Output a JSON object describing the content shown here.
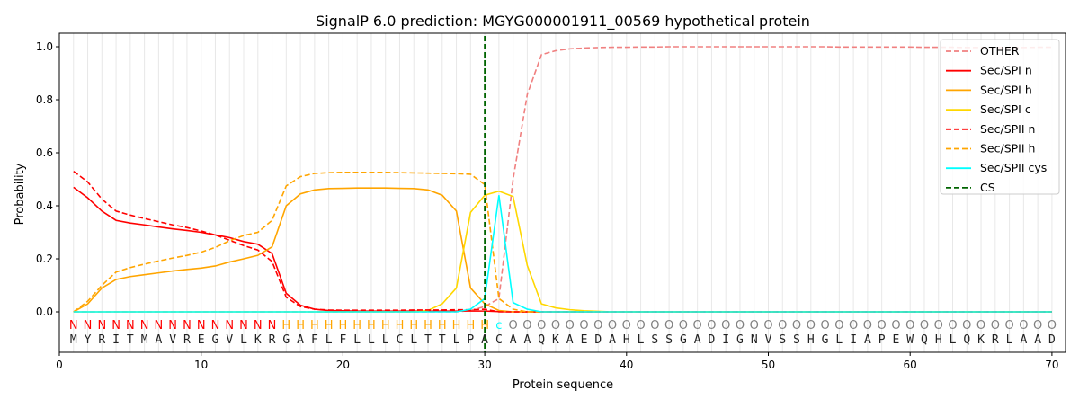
{
  "chart_data": {
    "type": "line",
    "title": "SignalP 6.0 prediction: MGYG000001911_00569 hypothetical protein",
    "xlabel": "Protein sequence",
    "ylabel": "Probability",
    "xlim": [
      0,
      71
    ],
    "ylim": [
      -0.15,
      1.05
    ],
    "xticks": [
      "0",
      "10",
      "20",
      "30",
      "40",
      "50",
      "60",
      "70"
    ],
    "yticks": [
      "0.0",
      "0.2",
      "0.4",
      "0.6",
      "0.8",
      "1.0"
    ],
    "legend_position": "top-right",
    "sequence": "MYRITMAVREGVLKRGAFLFLLLCLTTLPACAAQKAEDAHLSSGADIGNVSSHGLIAPEWQHLQKRLAAD",
    "labels": "NNNNNNNNNNNNNNNHHHHHHHHHHHHHHHcOOOOOOOOOOOOOOOOOOOOOOOOOOOOOOOOOOOOOOO",
    "label_colors": {
      "N": "#ff0000",
      "H": "#ffa500",
      "c": "#00ffff",
      "O": "#808080"
    },
    "cs_position": 30,
    "series": [
      {
        "name": "OTHER",
        "color": "#f08080",
        "dash": true,
        "values": [
          0,
          0,
          0,
          0,
          0,
          0,
          0,
          0,
          0,
          0,
          0,
          0,
          0,
          0,
          0,
          0,
          0,
          0,
          0,
          0,
          0,
          0,
          0,
          0,
          0,
          0,
          0,
          0,
          0.005,
          0.02,
          0.05,
          0.5,
          0.82,
          0.97,
          0.985,
          0.992,
          0.995,
          0.997,
          0.998,
          0.998,
          0.999,
          0.999,
          1,
          1,
          1,
          1,
          1,
          1,
          1,
          1,
          1,
          1,
          1,
          1,
          0.999,
          0.999,
          0.999,
          0.999,
          0.999,
          0.999,
          0.998,
          0.998,
          0.998,
          0.997,
          0.997,
          0.997,
          0.997,
          0.997,
          0.998,
          0.998
        ]
      },
      {
        "name": "Sec/SPI n",
        "color": "#ff0000",
        "dash": false,
        "values": [
          0.47,
          0.43,
          0.38,
          0.345,
          0.335,
          0.328,
          0.32,
          0.313,
          0.307,
          0.3,
          0.29,
          0.28,
          0.265,
          0.255,
          0.22,
          0.07,
          0.025,
          0.01,
          0.005,
          0.004,
          0.003,
          0.003,
          0.003,
          0.003,
          0.003,
          0.003,
          0.003,
          0.003,
          0.003,
          0.003,
          0.001,
          0,
          0,
          0,
          0,
          0,
          0,
          0,
          0,
          0,
          0,
          0,
          0,
          0,
          0,
          0,
          0,
          0,
          0,
          0,
          0,
          0,
          0,
          0,
          0,
          0,
          0,
          0,
          0,
          0,
          0,
          0,
          0,
          0,
          0,
          0,
          0,
          0,
          0,
          0
        ]
      },
      {
        "name": "Sec/SPI h",
        "color": "#ffa500",
        "dash": false,
        "values": [
          0,
          0.03,
          0.09,
          0.122,
          0.133,
          0.14,
          0.147,
          0.154,
          0.16,
          0.165,
          0.173,
          0.188,
          0.2,
          0.213,
          0.245,
          0.4,
          0.445,
          0.46,
          0.465,
          0.466,
          0.467,
          0.467,
          0.467,
          0.466,
          0.465,
          0.46,
          0.44,
          0.38,
          0.09,
          0.03,
          0.005,
          0,
          0,
          0,
          0,
          0,
          0,
          0,
          0,
          0,
          0,
          0,
          0,
          0,
          0,
          0,
          0,
          0,
          0,
          0,
          0,
          0,
          0,
          0,
          0,
          0,
          0,
          0,
          0,
          0,
          0,
          0,
          0,
          0,
          0,
          0,
          0,
          0,
          0,
          0
        ]
      },
      {
        "name": "Sec/SPI c",
        "color": "#ffd700",
        "dash": false,
        "values": [
          0,
          0,
          0,
          0,
          0,
          0,
          0,
          0,
          0,
          0,
          0,
          0,
          0,
          0,
          0,
          0,
          0,
          0,
          0,
          0,
          0,
          0,
          0,
          0,
          0,
          0.005,
          0.03,
          0.09,
          0.375,
          0.44,
          0.455,
          0.435,
          0.175,
          0.03,
          0.015,
          0.008,
          0.004,
          0.002,
          0,
          0,
          0,
          0,
          0,
          0,
          0,
          0,
          0,
          0,
          0,
          0,
          0,
          0,
          0,
          0,
          0,
          0,
          0,
          0,
          0,
          0,
          0,
          0,
          0,
          0,
          0,
          0,
          0,
          0,
          0,
          0
        ]
      },
      {
        "name": "Sec/SPII n",
        "color": "#ff0000",
        "dash": true,
        "values": [
          0.53,
          0.49,
          0.425,
          0.38,
          0.365,
          0.352,
          0.34,
          0.328,
          0.318,
          0.305,
          0.29,
          0.27,
          0.25,
          0.233,
          0.19,
          0.055,
          0.02,
          0.01,
          0.007,
          0.006,
          0.006,
          0.006,
          0.006,
          0.006,
          0.007,
          0.007,
          0.007,
          0.008,
          0.008,
          0.01,
          0,
          0,
          0,
          0,
          0,
          0,
          0,
          0,
          0,
          0,
          0,
          0,
          0,
          0,
          0,
          0,
          0,
          0,
          0,
          0,
          0,
          0,
          0,
          0,
          0,
          0,
          0,
          0,
          0,
          0,
          0,
          0,
          0,
          0,
          0,
          0,
          0,
          0,
          0,
          0
        ]
      },
      {
        "name": "Sec/SPII h",
        "color": "#ffa500",
        "dash": true,
        "values": [
          0,
          0.04,
          0.1,
          0.15,
          0.167,
          0.18,
          0.192,
          0.203,
          0.213,
          0.225,
          0.243,
          0.268,
          0.288,
          0.3,
          0.345,
          0.475,
          0.51,
          0.522,
          0.525,
          0.526,
          0.526,
          0.526,
          0.526,
          0.525,
          0.524,
          0.523,
          0.522,
          0.521,
          0.519,
          0.48,
          0.05,
          0.01,
          0,
          0,
          0,
          0,
          0,
          0,
          0,
          0,
          0,
          0,
          0,
          0,
          0,
          0,
          0,
          0,
          0,
          0,
          0,
          0,
          0,
          0,
          0,
          0,
          0,
          0,
          0,
          0,
          0,
          0,
          0,
          0,
          0,
          0,
          0,
          0,
          0,
          0
        ]
      },
      {
        "name": "Sec/SPII cys",
        "color": "#00ffff",
        "dash": false,
        "values": [
          0,
          0,
          0,
          0,
          0,
          0,
          0,
          0,
          0,
          0,
          0,
          0,
          0,
          0,
          0,
          0,
          0,
          0,
          0,
          0,
          0,
          0,
          0,
          0,
          0,
          0,
          0,
          0,
          0.01,
          0.05,
          0.44,
          0.035,
          0.01,
          0,
          0,
          0,
          0,
          0,
          0,
          0,
          0,
          0,
          0,
          0,
          0,
          0,
          0,
          0,
          0,
          0,
          0,
          0,
          0,
          0,
          0,
          0,
          0,
          0,
          0,
          0,
          0,
          0,
          0,
          0,
          0,
          0,
          0,
          0,
          0,
          0
        ]
      }
    ],
    "cs_legend": {
      "name": "CS",
      "color": "#006400"
    }
  }
}
